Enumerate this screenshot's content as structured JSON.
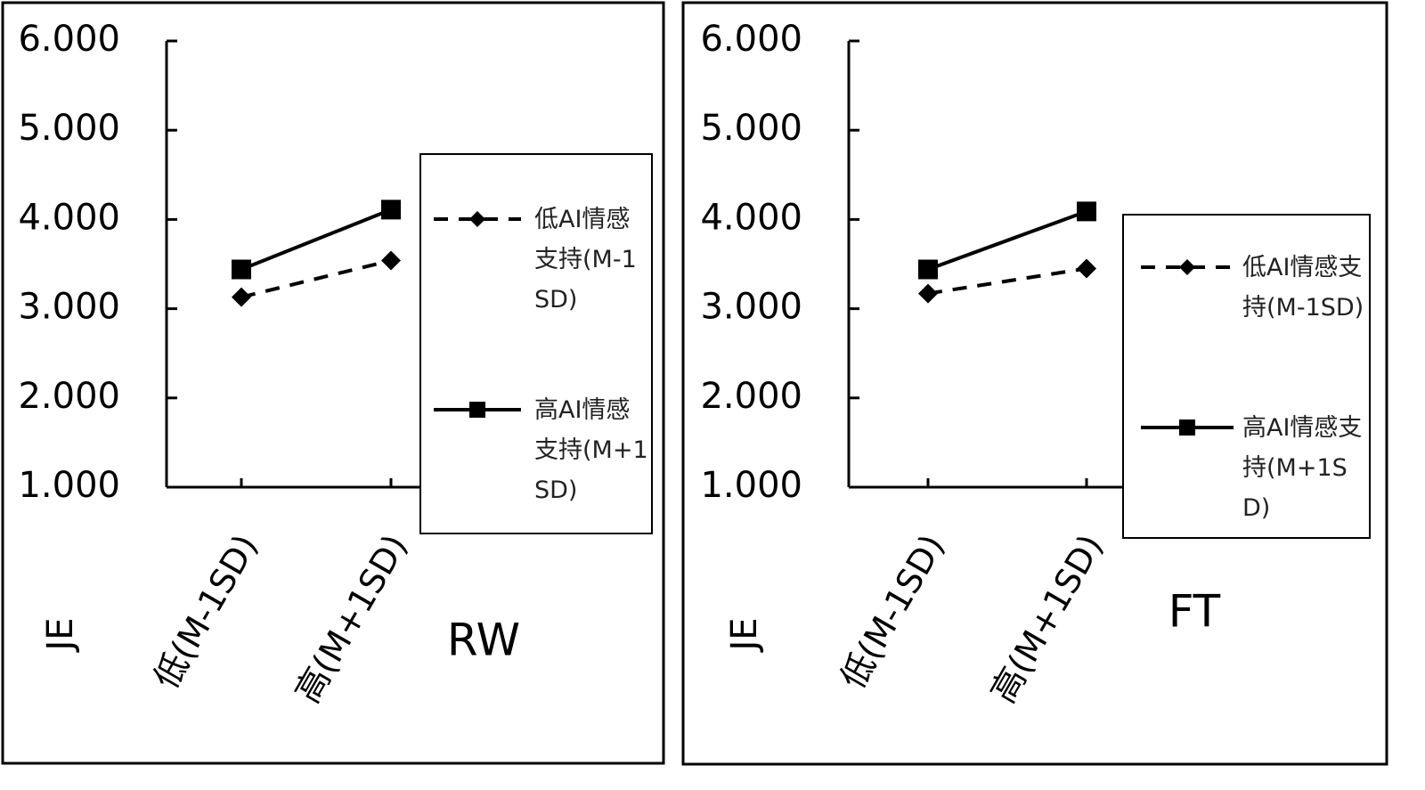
{
  "chart_data": [
    {
      "type": "line",
      "ylabel": "JE",
      "xlabel": "RW",
      "categories": [
        "低(M-1SD)",
        "高(M+1SD)"
      ],
      "series": [
        {
          "name": "低AI情感支持(M-1SD)",
          "color": "#000000",
          "dash": true,
          "marker": "diamond",
          "values": [
            3.13,
            3.54
          ]
        },
        {
          "name": "高AI情感支持(M+1SD)",
          "color": "#000000",
          "dash": false,
          "marker": "square",
          "values": [
            3.44,
            4.11
          ]
        }
      ],
      "ylim": [
        1,
        6
      ],
      "yticks": [
        {
          "value": 1,
          "label": "1.000"
        },
        {
          "value": 2,
          "label": "2.000"
        },
        {
          "value": 3,
          "label": "3.000"
        },
        {
          "value": 4,
          "label": "4.000"
        },
        {
          "value": 5,
          "label": "5.000"
        },
        {
          "value": 6,
          "label": "6.000"
        }
      ]
    },
    {
      "type": "line",
      "ylabel": "JE",
      "xlabel": "FT",
      "categories": [
        "低(M-1SD)",
        "高(M+1SD)"
      ],
      "series": [
        {
          "name": "低AI情感支持(M-1SD)",
          "color": "#000000",
          "dash": true,
          "marker": "diamond",
          "values": [
            3.17,
            3.45
          ]
        },
        {
          "name": "高AI情感支持(M+1SD)",
          "color": "#000000",
          "dash": false,
          "marker": "square",
          "values": [
            3.44,
            4.09
          ]
        }
      ],
      "ylim": [
        1,
        6
      ],
      "yticks": [
        {
          "value": 1,
          "label": "1.000"
        },
        {
          "value": 2,
          "label": "2.000"
        },
        {
          "value": 3,
          "label": "3.000"
        },
        {
          "value": 4,
          "label": "4.000"
        },
        {
          "value": 5,
          "label": "5.000"
        },
        {
          "value": 6,
          "label": "6.000"
        }
      ]
    }
  ]
}
